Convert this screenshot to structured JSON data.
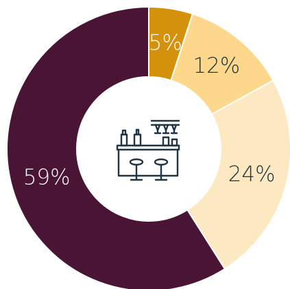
{
  "chart_data": {
    "type": "donut",
    "values": [
      5,
      12,
      24,
      59
    ],
    "value_labels": [
      "5%",
      "12%",
      "24%",
      "59%"
    ],
    "colors": [
      "#d4910c",
      "#fcd78c",
      "#fde9c1",
      "#4a1535"
    ],
    "label_colors": [
      "#ffffff",
      "#1d3445",
      "#1d3445",
      "#ffffff"
    ]
  }
}
